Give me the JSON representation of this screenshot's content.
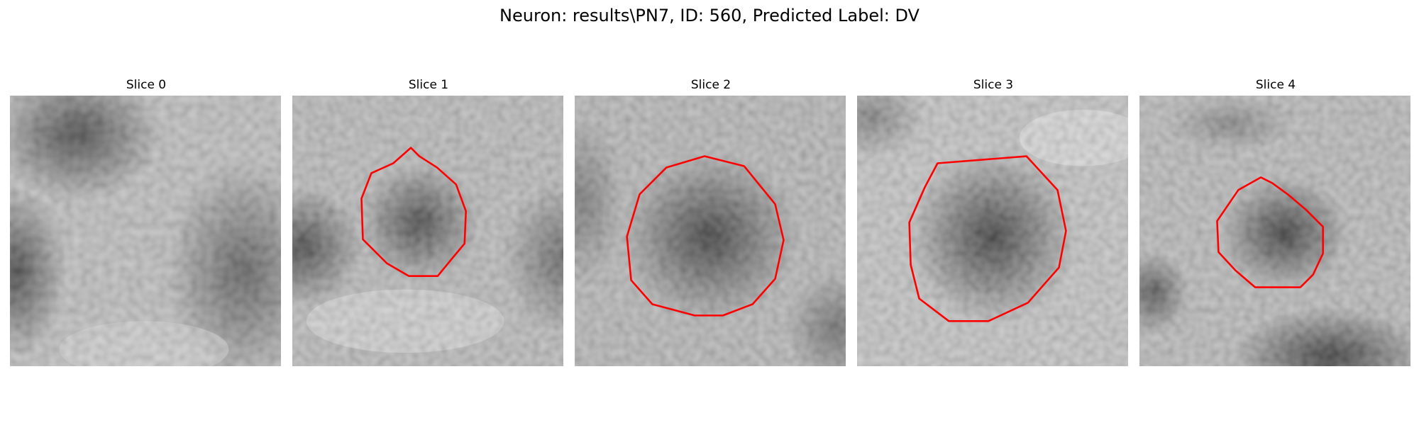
{
  "figure": {
    "title": "Neuron: results\\PN7, ID: 560, Predicted Label: DV"
  },
  "slices": [
    {
      "title": "Slice 0"
    },
    {
      "title": "Slice 1"
    },
    {
      "title": "Slice 2"
    },
    {
      "title": "Slice 3"
    },
    {
      "title": "Slice 4"
    }
  ],
  "colors": {
    "contour": "#ff0000"
  }
}
